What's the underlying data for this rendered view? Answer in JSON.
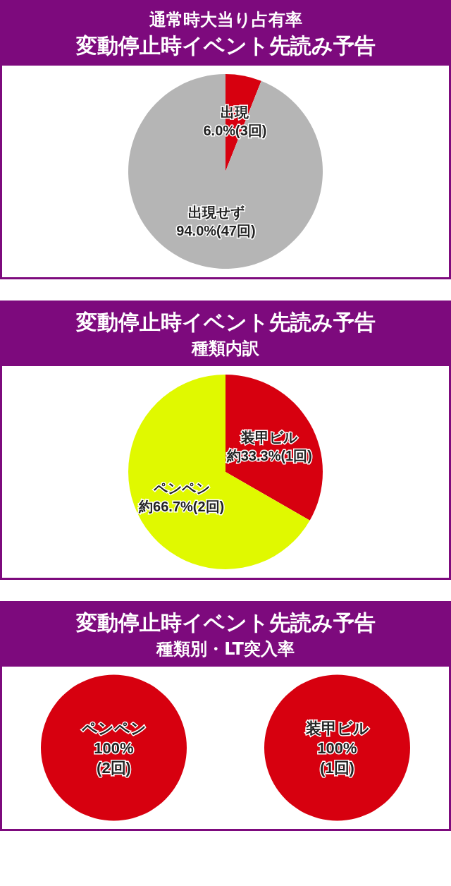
{
  "chart_data": [
    {
      "type": "pie",
      "subtitle": "通常時大当り占有率",
      "title": "変動停止時イベント先読み予告",
      "categories": [
        "出現",
        "出現せず"
      ],
      "values": [
        6.0,
        94.0
      ],
      "colors": [
        "#d7000f",
        "#b5b5b5"
      ],
      "value_labels": [
        "6.0%(3回)",
        "94.0%(47回)"
      ]
    },
    {
      "type": "pie",
      "title": "変動停止時イベント先読み予告",
      "subtitle": "種類内訳",
      "categories": [
        "装甲ビル",
        "ペンペン"
      ],
      "values": [
        33.3,
        66.7
      ],
      "colors": [
        "#d7000f",
        "#e0f900"
      ],
      "value_labels": [
        "約33.3%(1回)",
        "約66.7%(2回)"
      ]
    },
    {
      "type": "pie",
      "title": "変動停止時イベント先読み予告",
      "subtitle": "種類別・LT突入率",
      "categories": [
        "ペンペン"
      ],
      "values": [
        100
      ],
      "colors": [
        "#d7000f"
      ],
      "value_labels": [
        "100%\n(2回)"
      ]
    },
    {
      "type": "pie",
      "categories": [
        "装甲ビル"
      ],
      "values": [
        100
      ],
      "colors": [
        "#d7000f"
      ],
      "value_labels": [
        "100%\n(1回)"
      ]
    }
  ]
}
